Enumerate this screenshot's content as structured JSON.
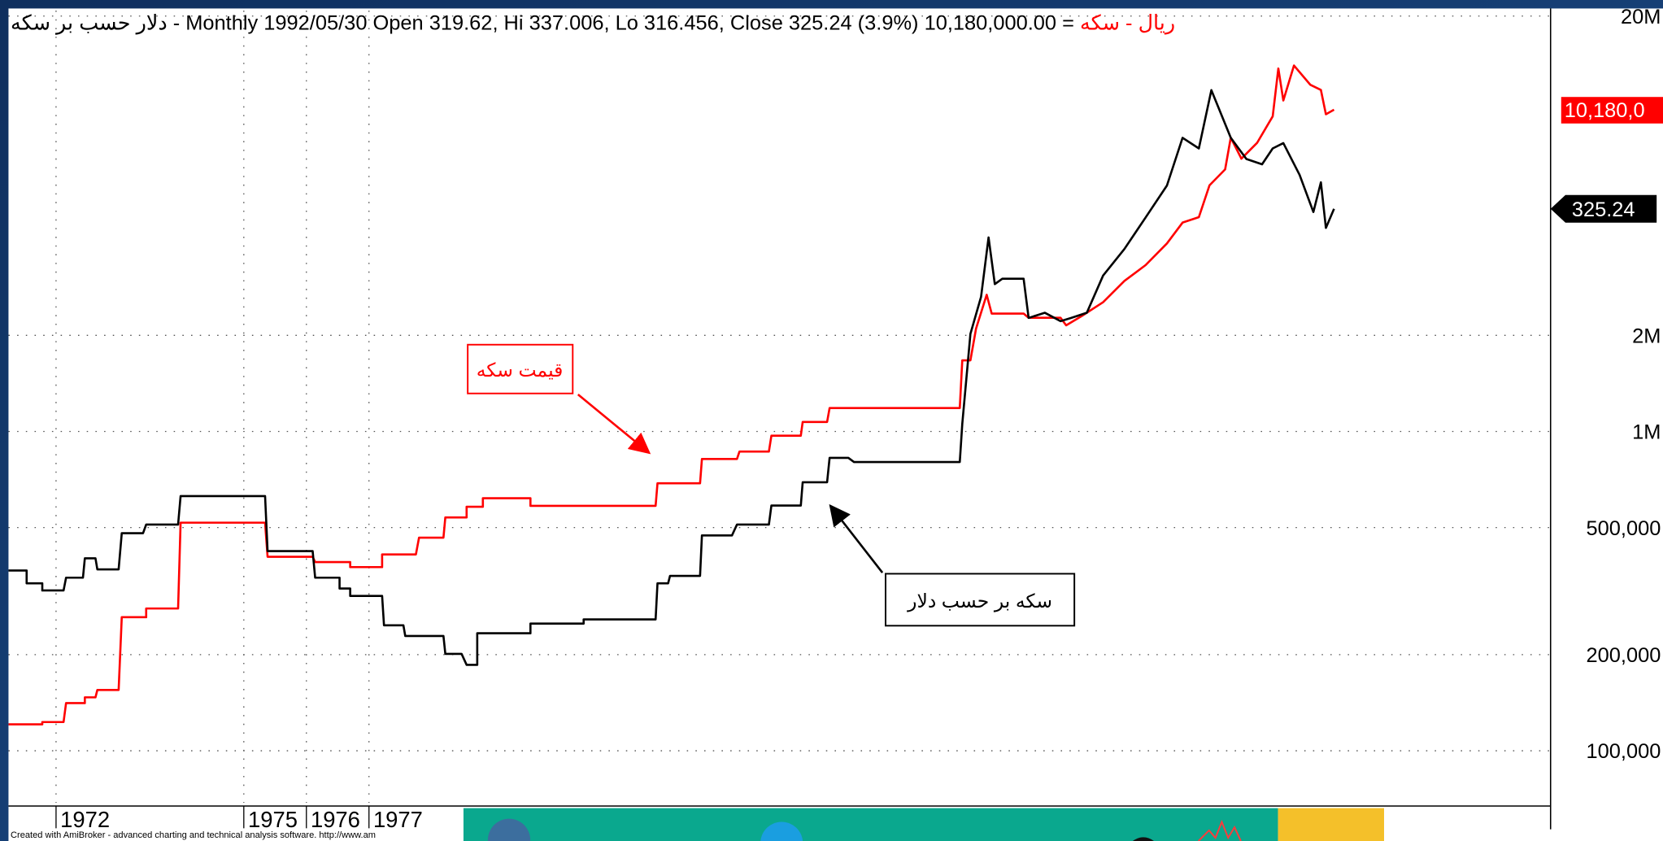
{
  "chart_data": {
    "type": "line",
    "title": "- Monthly 1992/05/30 Open 319.62, Hi 337.006, Lo 316.456, Close 325.24 (3.9%)",
    "title_suffix": "= 10,180,000.00",
    "footer": "Created with AmiBroker - advanced charting and technical analysis software. http://www.am",
    "log_scale": true,
    "grid": true,
    "xlim": [
      1971.24,
      1995.88
    ],
    "xticks": [
      1972,
      1975,
      1976,
      1977
    ],
    "ylim": [
      68700,
      20800000
    ],
    "yticks": [
      {
        "value": 100000,
        "label": "100,000"
      },
      {
        "value": 200000,
        "label": "200,000"
      },
      {
        "value": 500000,
        "label": "500,000"
      },
      {
        "value": 1000000,
        "label": "1M"
      },
      {
        "value": 2000000,
        "label": "2M"
      },
      {
        "value": 20000000,
        "label": "20M"
      }
    ],
    "y2lim": [
      4.47,
      1360
    ],
    "series": [
      {
        "name": "ریال - سکه",
        "color": "#ff0000",
        "last_value_label": "10,180,0",
        "x": [
          1971.24,
          1971.78,
          1971.78,
          1972.12,
          1972.16,
          1972.46,
          1972.46,
          1972.63,
          1972.66,
          1973.0,
          1973.05,
          1973.44,
          1973.44,
          1973.95,
          1973.99,
          1975.34,
          1975.38,
          1976.1,
          1976.14,
          1976.7,
          1976.7,
          1977.21,
          1977.21,
          1977.75,
          1977.8,
          1978.19,
          1978.22,
          1978.56,
          1978.56,
          1978.82,
          1978.82,
          1979.58,
          1979.58,
          1981.58,
          1981.61,
          1982.29,
          1982.32,
          1982.88,
          1982.92,
          1983.39,
          1983.43,
          1983.9,
          1983.93,
          1984.32,
          1984.36,
          1986.44,
          1986.48,
          1986.61,
          1986.7,
          1986.87,
          1986.95,
          1987.46,
          1987.54,
          1988.05,
          1988.14,
          1988.39,
          1988.73,
          1989.07,
          1989.41,
          1989.75,
          1990.0,
          1990.26,
          1990.43,
          1990.68,
          1990.77,
          1990.94,
          1991.19,
          1991.44,
          1991.53,
          1991.61,
          1991.78,
          1992.04,
          1992.21,
          1992.29,
          1992.42
        ],
        "values": [
          121000,
          121000,
          123000,
          123000,
          141000,
          141000,
          147000,
          147000,
          155000,
          155000,
          262000,
          262000,
          279000,
          279000,
          518000,
          518000,
          405000,
          405000,
          390000,
          390000,
          376000,
          376000,
          412000,
          412000,
          465000,
          465000,
          538000,
          538000,
          581000,
          581000,
          618000,
          618000,
          585000,
          585000,
          688000,
          688000,
          820000,
          820000,
          865000,
          865000,
          970000,
          970000,
          1071000,
          1071000,
          1184000,
          1184000,
          1670000,
          1670000,
          2100000,
          2680000,
          2340000,
          2340000,
          2270000,
          2270000,
          2150000,
          2300000,
          2540000,
          2960000,
          3320000,
          3880000,
          4510000,
          4690000,
          5900000,
          6620000,
          8320000,
          7150000,
          8010000,
          9700000,
          13700000,
          10880000,
          14000000,
          12190000,
          11740000,
          9850000,
          10180000
        ]
      },
      {
        "name": "دلار حسب بر سکه",
        "color": "#000000",
        "axis": "y2",
        "x": [
          1971.24,
          1971.53,
          1971.53,
          1971.78,
          1971.78,
          1972.12,
          1972.16,
          1972.43,
          1972.46,
          1972.63,
          1972.66,
          1973.0,
          1973.05,
          1973.39,
          1973.44,
          1973.95,
          1973.99,
          1975.34,
          1975.38,
          1976.1,
          1976.14,
          1976.53,
          1976.53,
          1976.7,
          1976.7,
          1977.21,
          1977.24,
          1977.55,
          1977.58,
          1978.19,
          1978.22,
          1978.48,
          1978.56,
          1978.73,
          1978.73,
          1979.58,
          1979.58,
          1980.43,
          1980.43,
          1981.58,
          1981.61,
          1981.78,
          1981.81,
          1982.29,
          1982.32,
          1982.8,
          1982.88,
          1983.39,
          1983.43,
          1983.9,
          1983.93,
          1984.32,
          1984.36,
          1984.66,
          1984.75,
          1986.44,
          1986.48,
          1986.61,
          1986.78,
          1986.9,
          1987.0,
          1987.12,
          1987.46,
          1987.54,
          1987.8,
          1988.05,
          1988.22,
          1988.47,
          1988.73,
          1989.07,
          1989.41,
          1989.75,
          1990.0,
          1990.26,
          1990.46,
          1990.77,
          1991.02,
          1991.27,
          1991.44,
          1991.61,
          1991.87,
          1992.09,
          1992.21,
          1992.29,
          1992.42
        ],
        "values": [
          23.9,
          23.9,
          21.8,
          21.8,
          20.7,
          20.7,
          22.7,
          22.7,
          26.1,
          26.1,
          24.1,
          24.1,
          31.3,
          31.3,
          33.3,
          33.3,
          40.9,
          40.9,
          27.5,
          27.5,
          22.7,
          22.7,
          21.0,
          21.0,
          19.9,
          19.9,
          16.1,
          16.1,
          14.9,
          14.9,
          13.1,
          13.1,
          12.1,
          12.1,
          15.2,
          15.2,
          16.3,
          16.3,
          16.8,
          16.8,
          21.8,
          21.8,
          23.0,
          23.0,
          30.8,
          30.8,
          33.3,
          33.3,
          38.2,
          38.2,
          45.2,
          45.2,
          53.9,
          53.9,
          52.3,
          52.3,
          68.9,
          131.9,
          172.3,
          264.5,
          188.9,
          196.4,
          196.4,
          148.0,
          153.6,
          144.6,
          148.0,
          153.6,
          200.9,
          243.3,
          305.7,
          384.8,
          543.1,
          502.9,
          766.0,
          543.1,
          465.9,
          448.5,
          502.9,
          522.7,
          415.4,
          317.8,
          393.8,
          283.4,
          325.24
        ]
      }
    ],
    "annotations": [
      {
        "text": "قیمت سکه",
        "color": "#ff0000"
      },
      {
        "text": "سکه بر حسب دلار",
        "color": "#000000"
      }
    ]
  }
}
